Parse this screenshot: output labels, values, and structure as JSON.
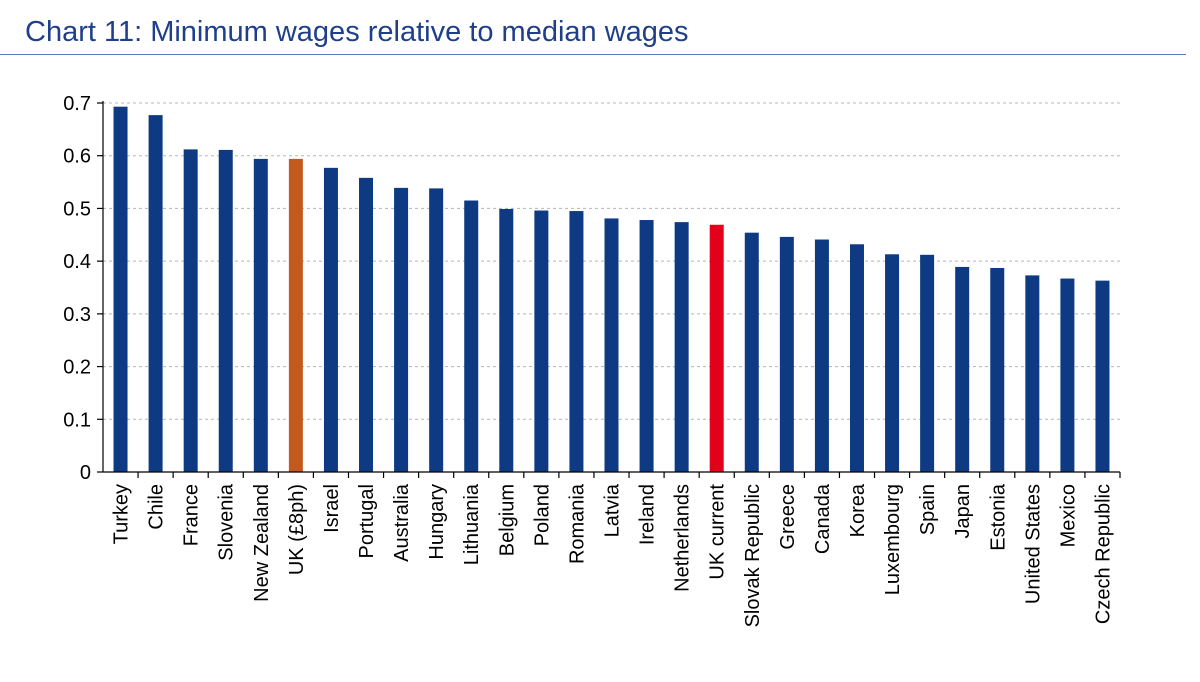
{
  "title": "Chart 11: Minimum wages relative to median wages",
  "colors": {
    "default_bar": "#0d3a82",
    "highlight_uk_8ph": "#c25a1e",
    "highlight_uk_current": "#e3001b",
    "title": "#1f3f8a",
    "grid": "#b5b5b5"
  },
  "chart_data": {
    "type": "bar",
    "title": "Chart 11: Minimum wages relative to median wages",
    "xlabel": "",
    "ylabel": "",
    "ylim": [
      0,
      0.7
    ],
    "yticks": [
      "0",
      "0.1",
      "0.2",
      "0.3",
      "0.4",
      "0.5",
      "0.6",
      "0.7"
    ],
    "grid": "horizontal dashed",
    "categories": [
      "Turkey",
      "Chile",
      "France",
      "Slovenia",
      "New Zealand",
      "UK (£8ph)",
      "Israel",
      "Portugal",
      "Australia",
      "Hungary",
      "Lithuania",
      "Belgium",
      "Poland",
      "Romania",
      "Latvia",
      "Ireland",
      "Netherlands",
      "UK current",
      "Slovak Republic",
      "Greece",
      "Canada",
      "Korea",
      "Luxembourg",
      "Spain",
      "Japan",
      "Estonia",
      "United States",
      "Mexico",
      "Czech Republic"
    ],
    "values": [
      0.693,
      0.677,
      0.612,
      0.611,
      0.594,
      0.594,
      0.577,
      0.558,
      0.539,
      0.538,
      0.515,
      0.499,
      0.496,
      0.495,
      0.481,
      0.478,
      0.474,
      0.469,
      0.454,
      0.446,
      0.441,
      0.432,
      0.413,
      0.412,
      0.389,
      0.387,
      0.373,
      0.367,
      0.363
    ],
    "highlights": {
      "UK (£8ph)": "#c25a1e",
      "UK current": "#e3001b"
    }
  }
}
